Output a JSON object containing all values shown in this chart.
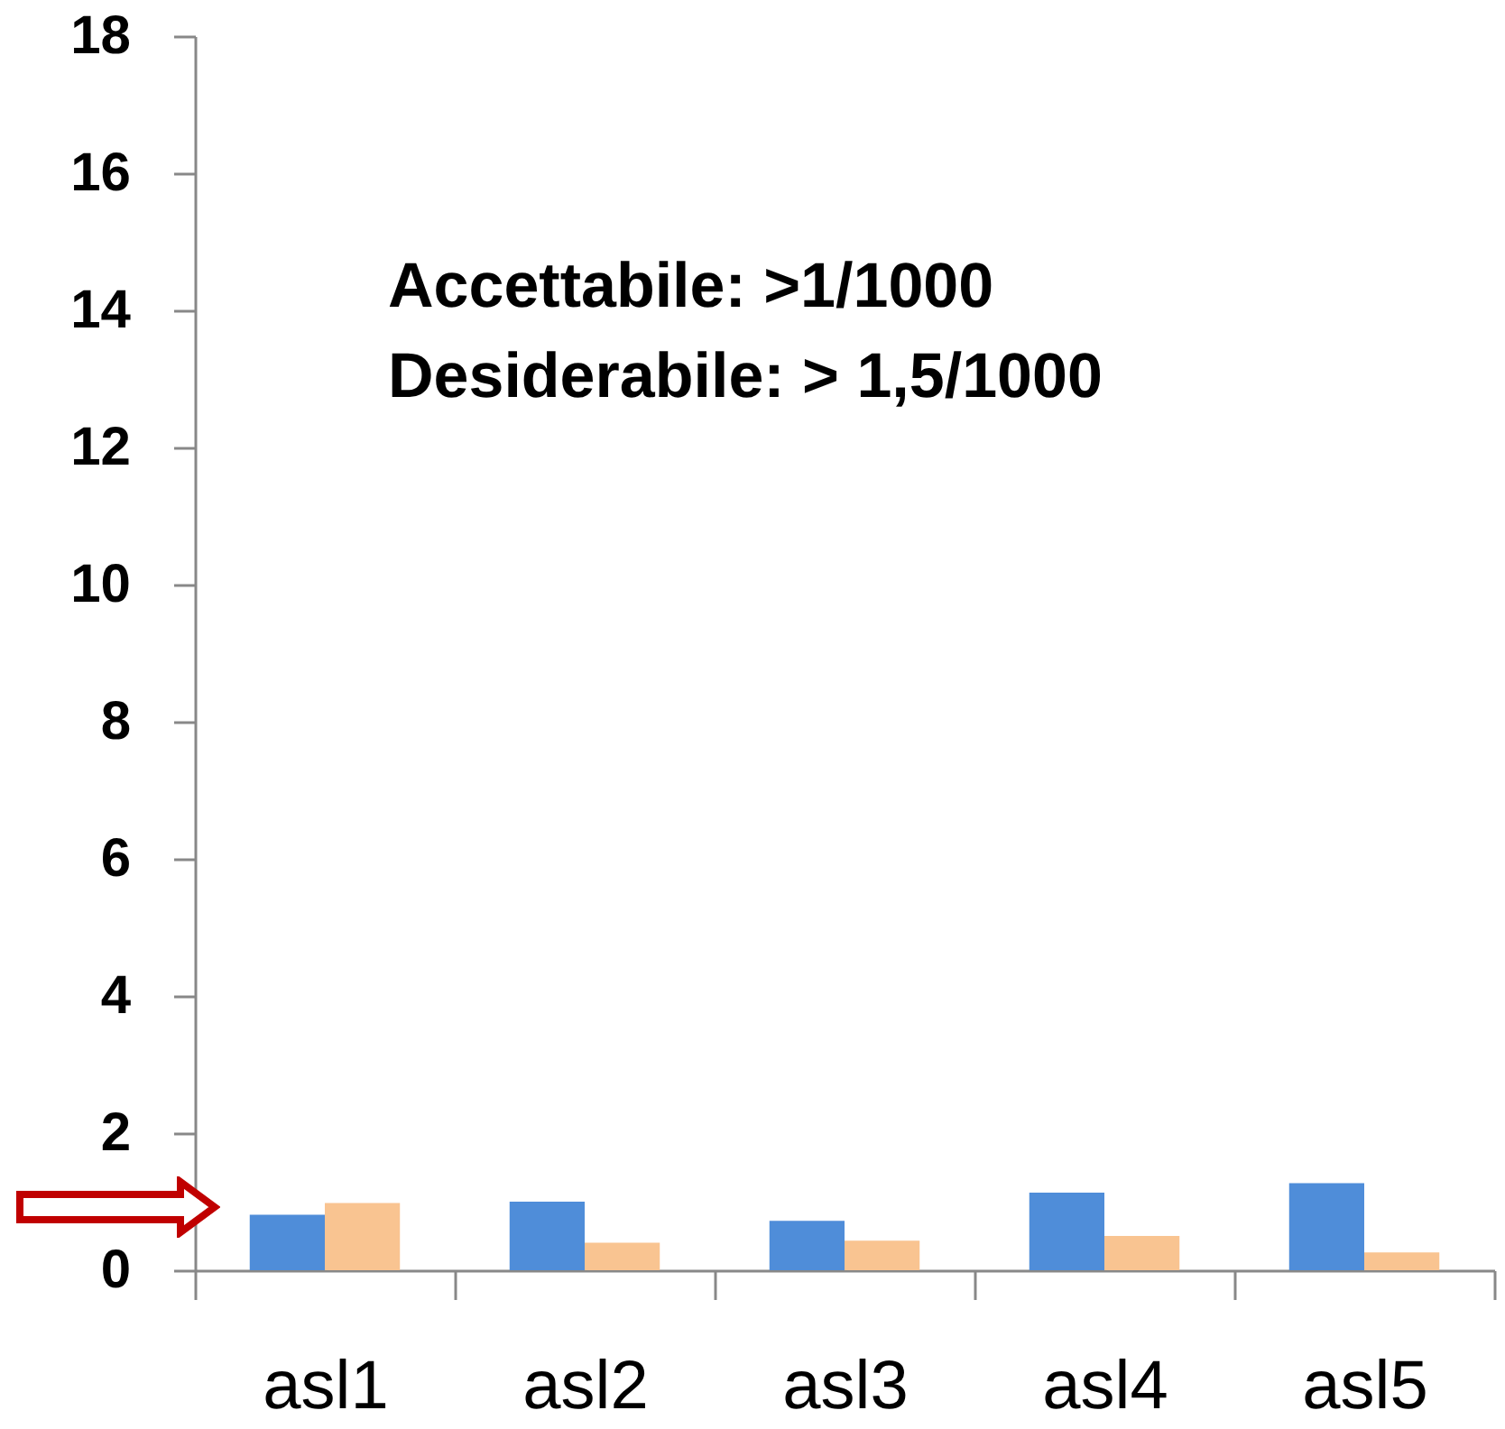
{
  "chart_data": {
    "type": "bar",
    "categories": [
      "asl1",
      "asl2",
      "asl3",
      "asl4",
      "asl5"
    ],
    "series": [
      {
        "color": "#4f8dd9",
        "values": [
          0.81,
          1.0,
          0.72,
          1.13,
          1.27
        ]
      },
      {
        "color": "#f9c491",
        "values": [
          0.98,
          0.4,
          0.43,
          0.5,
          0.26
        ]
      }
    ],
    "ylim": [
      0,
      18
    ],
    "yticks": [
      0,
      2,
      4,
      6,
      8,
      10,
      12,
      14,
      16,
      18
    ],
    "annotations": [
      "Accettabile: >1/1000",
      "Desiderabile: > 1,5/1000"
    ]
  }
}
